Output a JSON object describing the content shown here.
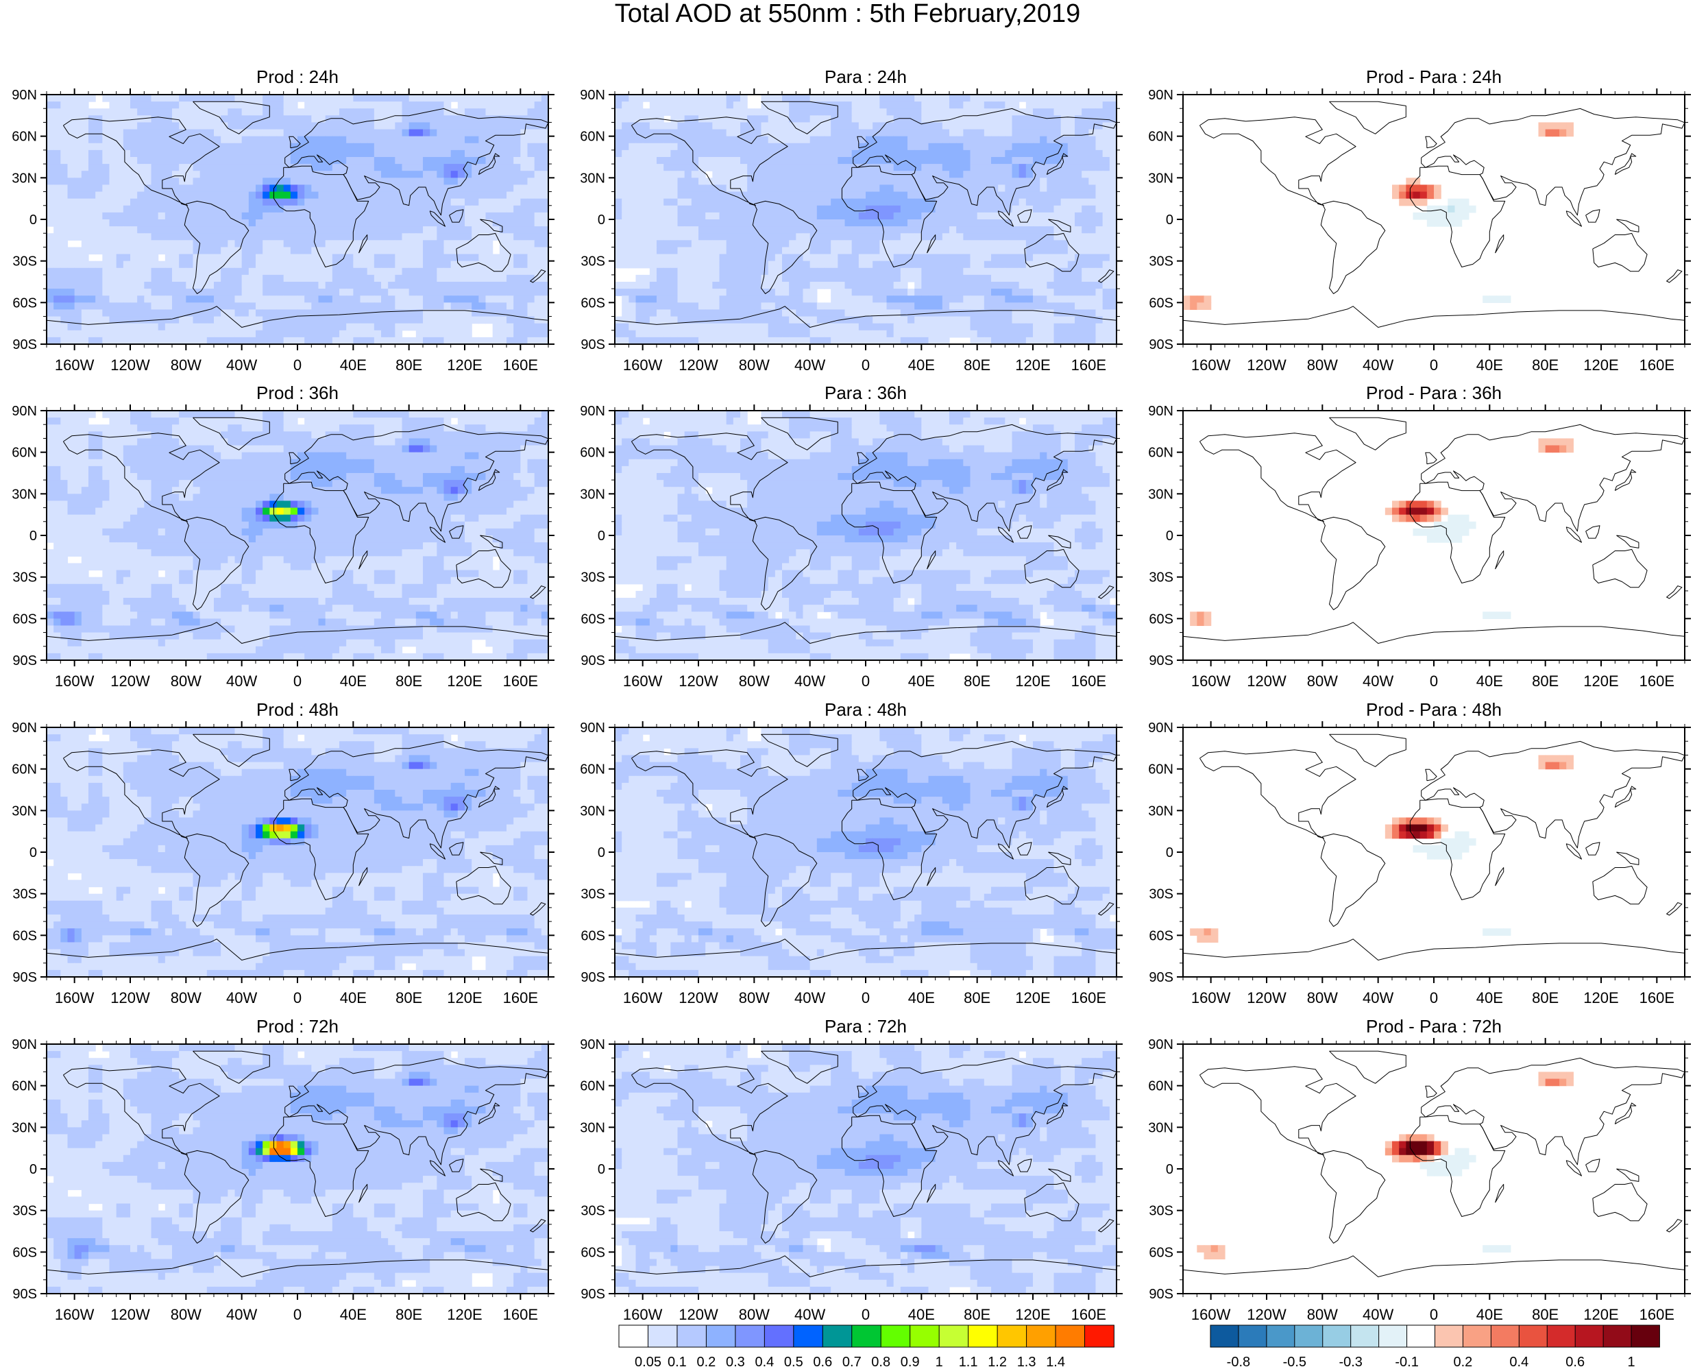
{
  "title": "Total AOD at 550nm : 5th February,2019",
  "panels": [
    {
      "title": "Prod : 24h",
      "kind": "field",
      "lead": 0
    },
    {
      "title": "Para : 24h",
      "kind": "field_para",
      "lead": 0
    },
    {
      "title": "Prod - Para : 24h",
      "kind": "diff",
      "lead": 0
    },
    {
      "title": "Prod : 36h",
      "kind": "field",
      "lead": 1
    },
    {
      "title": "Para : 36h",
      "kind": "field_para",
      "lead": 1
    },
    {
      "title": "Prod - Para : 36h",
      "kind": "diff",
      "lead": 1
    },
    {
      "title": "Prod : 48h",
      "kind": "field",
      "lead": 2
    },
    {
      "title": "Para : 48h",
      "kind": "field_para",
      "lead": 2
    },
    {
      "title": "Prod - Para : 48h",
      "kind": "diff",
      "lead": 2
    },
    {
      "title": "Prod : 72h",
      "kind": "field",
      "lead": 3
    },
    {
      "title": "Para : 72h",
      "kind": "field_para",
      "lead": 3
    },
    {
      "title": "Prod - Para : 72h",
      "kind": "diff",
      "lead": 3
    }
  ],
  "lat_ticks": [
    "90N",
    "60N",
    "30N",
    "0",
    "30S",
    "60S",
    "90S"
  ],
  "lon_ticks": [
    "160W",
    "120W",
    "80W",
    "40W",
    "0",
    "40E",
    "80E",
    "120E",
    "160E"
  ],
  "lon_tick_values": [
    -160,
    -120,
    -80,
    -40,
    0,
    40,
    80,
    120,
    160
  ],
  "aod_colorbar": {
    "labels": [
      "0.05",
      "0.1",
      "0.2",
      "0.3",
      "0.4",
      "0.5",
      "0.6",
      "0.7",
      "0.8",
      "0.9",
      "1",
      "1.1",
      "1.2",
      "1.3",
      "1.4"
    ],
    "colors": [
      "#ffffff",
      "#d6e2ff",
      "#b5c9ff",
      "#8eb2ff",
      "#7f96ff",
      "#6370ff",
      "#0063ff",
      "#009696",
      "#00c633",
      "#63ff00",
      "#96ff00",
      "#c6ff33",
      "#ffff00",
      "#ffc600",
      "#ffa000",
      "#ff7c00",
      "#ff1900"
    ]
  },
  "diff_colorbar": {
    "labels": [
      "-0.8",
      "-0.5",
      "-0.3",
      "-0.1",
      "0.2",
      "0.4",
      "0.6",
      "1"
    ],
    "colors": [
      "#0d5a9e",
      "#2b7bba",
      "#4a98c9",
      "#6cb2d6",
      "#97cde4",
      "#c4e4ef",
      "#e3f2f8",
      "#ffffff",
      "#fbc5b0",
      "#f9a184",
      "#f37b61",
      "#e9533f",
      "#d42b2b",
      "#b71620",
      "#920b18",
      "#67000d"
    ]
  }
}
